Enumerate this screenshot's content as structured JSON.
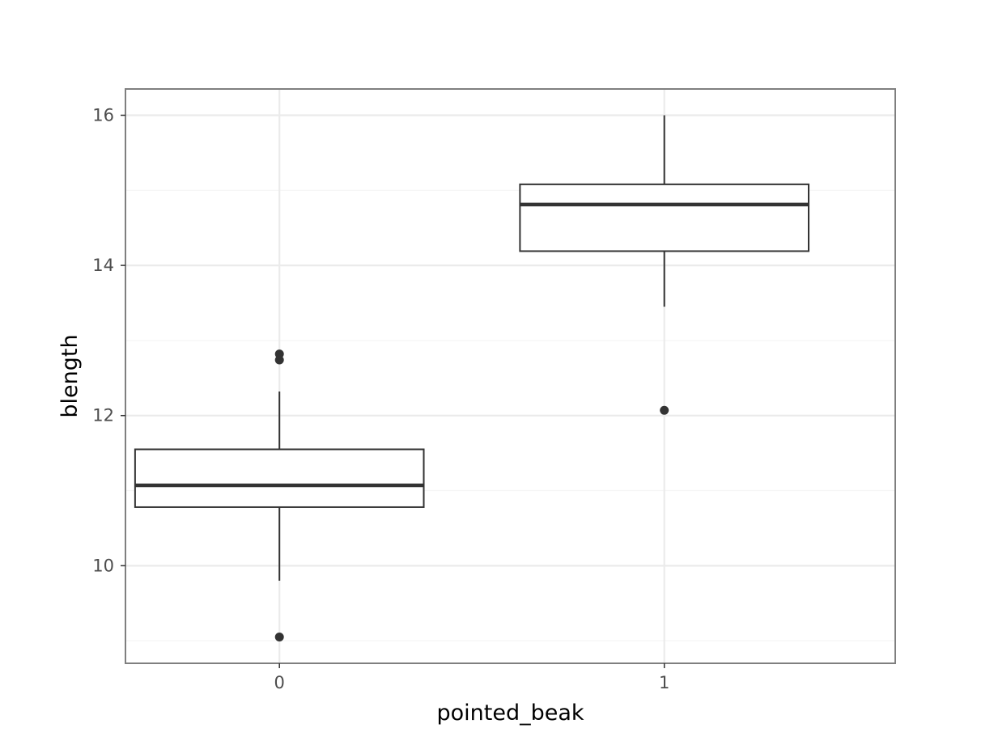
{
  "chart_data": {
    "type": "box",
    "title": "",
    "xlabel": "pointed_beak",
    "ylabel": "blength",
    "categories": [
      "0",
      "1"
    ],
    "ylim": [
      8.7,
      16.35
    ],
    "y_ticks": [
      10,
      12,
      14,
      16
    ],
    "y_tick_labels": [
      "10",
      "12",
      "14",
      "16"
    ],
    "y_minor_ticks": [
      9,
      11,
      13,
      15
    ],
    "grid": true,
    "boxes": [
      {
        "category": "0",
        "whisker_low": 9.8,
        "q1": 10.78,
        "median": 11.07,
        "q3": 11.55,
        "whisker_high": 12.32,
        "outliers": [
          9.05,
          12.74,
          12.82
        ]
      },
      {
        "category": "1",
        "whisker_low": 13.45,
        "q1": 14.19,
        "median": 14.81,
        "q3": 15.08,
        "whisker_high": 16.0,
        "outliers": [
          12.07
        ]
      }
    ],
    "colors": {
      "panel_border": "#7f7f7f",
      "grid_major": "#ebebeb",
      "grid_minor": "#f5f5f5",
      "box_stroke": "#333333",
      "box_fill": "#ffffff",
      "outlier": "#333333"
    }
  }
}
